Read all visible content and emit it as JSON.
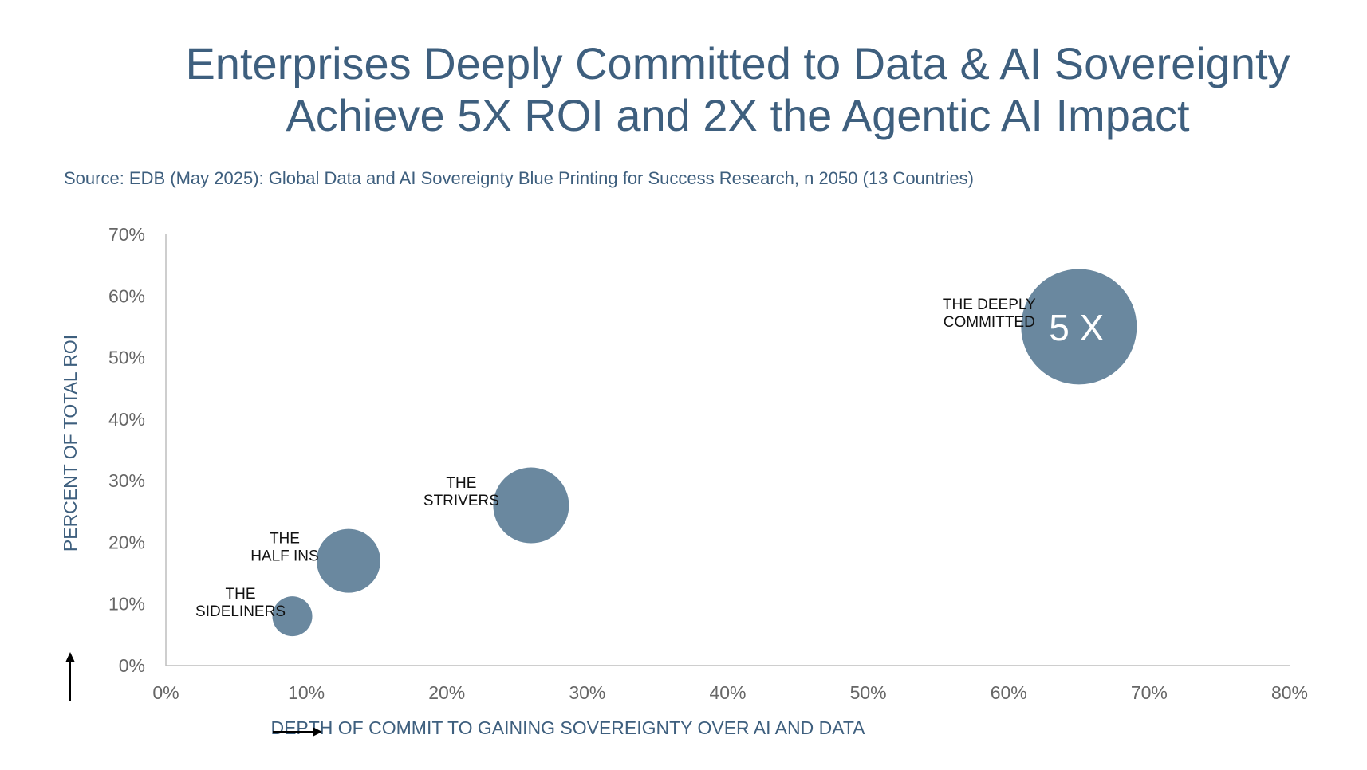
{
  "title_lines": [
    "Enterprises Deeply Committed to Data & AI Sovereignty",
    "Achieve 5X ROI and 2X the Agentic AI Impact"
  ],
  "source": "Source: EDB (May 2025): Global Data and AI Sovereignty Blue Printing for Success Research, n 2050 (13 Countries)",
  "colors": {
    "title": "#3e5f7e",
    "bubble": "#6a889f",
    "axis_label": "#3e5f7e",
    "tick": "#666666",
    "axis_line": "#bdbdbd"
  },
  "chart_data": {
    "type": "bubble",
    "xlabel": "DEPTH OF COMMIT TO  GAINING  SOVEREIGNTY OVER AI AND DATA",
    "ylabel": "PERCENT OF TOTAL ROI",
    "xlim": [
      0,
      80
    ],
    "ylim": [
      0,
      70
    ],
    "x_ticks": [
      0,
      10,
      20,
      30,
      40,
      50,
      60,
      70,
      80
    ],
    "y_ticks": [
      0,
      10,
      20,
      30,
      40,
      50,
      60,
      70
    ],
    "x_tick_labels": [
      "0%",
      "10%",
      "20%",
      "30%",
      "40%",
      "50%",
      "60%",
      "70%",
      "80%"
    ],
    "y_tick_labels": [
      "0%",
      "10%",
      "20%",
      "30%",
      "40%",
      "50%",
      "60%",
      "70%"
    ],
    "grid": false,
    "points": [
      {
        "label": [
          "THE",
          "SIDELINERS"
        ],
        "x": 9,
        "y": 8,
        "size": 1.0,
        "bubble_text": ""
      },
      {
        "label": [
          "THE",
          "HALF INS"
        ],
        "x": 13,
        "y": 17,
        "size": 1.6,
        "bubble_text": ""
      },
      {
        "label": [
          "THE",
          "STRIVERS"
        ],
        "x": 26,
        "y": 26,
        "size": 1.9,
        "bubble_text": ""
      },
      {
        "label": [
          "THE DEEPLY",
          "COMMITTED"
        ],
        "x": 65,
        "y": 55,
        "size": 2.9,
        "bubble_text": "5 X"
      }
    ]
  }
}
